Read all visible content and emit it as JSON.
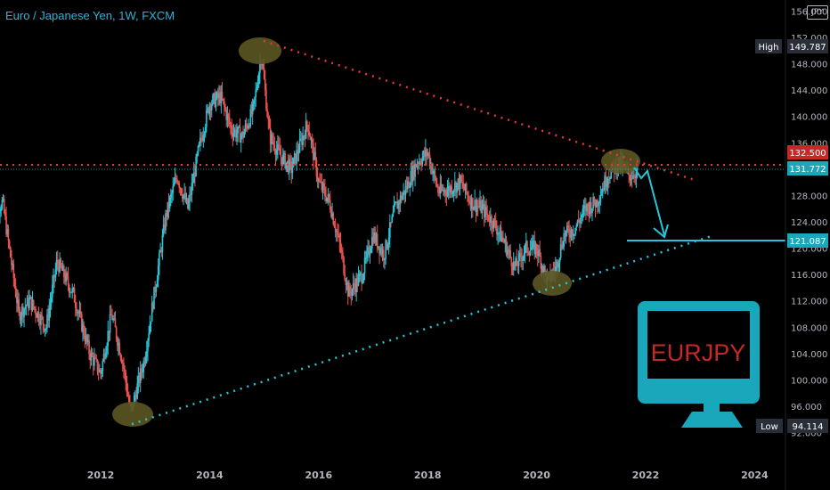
{
  "title": "Euro / Japanese Yen, 1W, FXCM",
  "currency_badge": "JPY",
  "logo_text": "EURJPY",
  "colors": {
    "up": "#26c6da",
    "down": "#ef5350",
    "resistance": "#e53935",
    "support": "#26c6da",
    "highlight": "#5c5722"
  },
  "chart_data": {
    "type": "candlestick",
    "title": "Euro / Japanese Yen, 1W, FXCM",
    "x_ticks": [
      "2012",
      "2014",
      "2016",
      "2018",
      "2020",
      "2022",
      "2024"
    ],
    "y_ticks": [
      "92.000",
      "96.000",
      "100.000",
      "104.000",
      "108.000",
      "112.000",
      "116.000",
      "120.000",
      "124.000",
      "128.000",
      "132.000",
      "136.000",
      "140.000",
      "144.000",
      "148.000",
      "152.000",
      "156.000"
    ],
    "ylim": [
      91,
      157
    ],
    "xlim": [
      2010.0,
      2025.7
    ],
    "markers": {
      "high": {
        "label": "High",
        "value": "149.787"
      },
      "low": {
        "label": "Low",
        "value": "94.114"
      },
      "resistance_level": {
        "value": "132.500"
      },
      "current_price": {
        "value": "131.772"
      },
      "target": {
        "value": "121.087"
      }
    },
    "price_path": [
      [
        2010.0,
        125
      ],
      [
        2010.2,
        127
      ],
      [
        2010.5,
        110
      ],
      [
        2010.7,
        112
      ],
      [
        2011.0,
        108
      ],
      [
        2011.2,
        118
      ],
      [
        2011.5,
        113
      ],
      [
        2011.8,
        104
      ],
      [
        2012.0,
        101
      ],
      [
        2012.2,
        110
      ],
      [
        2012.4,
        103
      ],
      [
        2012.55,
        95
      ],
      [
        2012.8,
        103
      ],
      [
        2013.0,
        114
      ],
      [
        2013.2,
        125
      ],
      [
        2013.4,
        131
      ],
      [
        2013.6,
        126
      ],
      [
        2013.8,
        135
      ],
      [
        2014.0,
        142
      ],
      [
        2014.2,
        143
      ],
      [
        2014.4,
        138
      ],
      [
        2014.6,
        137
      ],
      [
        2014.8,
        141
      ],
      [
        2014.95,
        149.5
      ],
      [
        2015.1,
        137
      ],
      [
        2015.3,
        134
      ],
      [
        2015.5,
        132
      ],
      [
        2015.8,
        139
      ],
      [
        2016.0,
        130
      ],
      [
        2016.2,
        127
      ],
      [
        2016.4,
        120
      ],
      [
        2016.55,
        113
      ],
      [
        2016.8,
        116
      ],
      [
        2017.0,
        122
      ],
      [
        2017.2,
        119
      ],
      [
        2017.4,
        126
      ],
      [
        2017.6,
        129
      ],
      [
        2017.8,
        133
      ],
      [
        2018.0,
        134.5
      ],
      [
        2018.2,
        128.5
      ],
      [
        2018.4,
        129
      ],
      [
        2018.6,
        130
      ],
      [
        2018.8,
        127
      ],
      [
        2019.0,
        126
      ],
      [
        2019.2,
        124
      ],
      [
        2019.4,
        121
      ],
      [
        2019.6,
        117
      ],
      [
        2019.8,
        120
      ],
      [
        2020.0,
        120
      ],
      [
        2020.2,
        115
      ],
      [
        2020.35,
        117
      ],
      [
        2020.5,
        122
      ],
      [
        2020.7,
        123
      ],
      [
        2020.9,
        126
      ],
      [
        2021.1,
        127
      ],
      [
        2021.3,
        131
      ],
      [
        2021.5,
        133
      ],
      [
        2021.7,
        131
      ],
      [
        2021.85,
        131.8
      ]
    ]
  }
}
